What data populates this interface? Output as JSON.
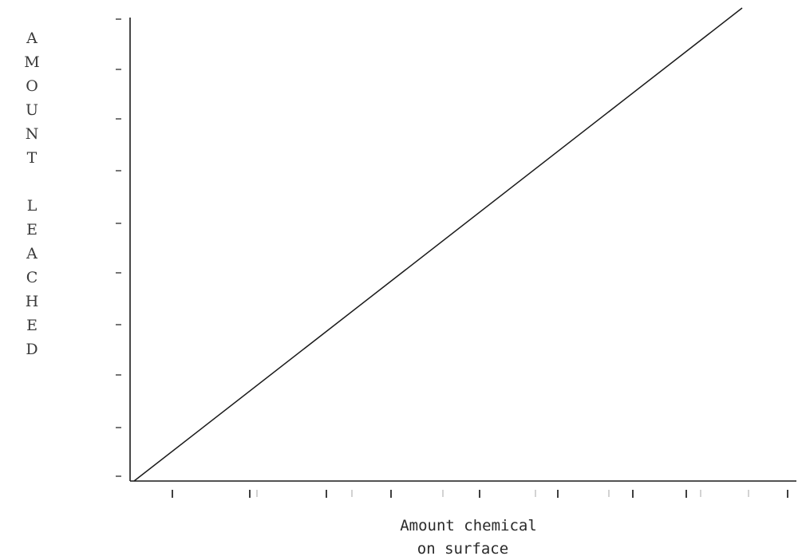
{
  "chart_data": {
    "type": "line",
    "title": "",
    "xlabel": [
      "Amount chemical",
      "on surface"
    ],
    "ylabel": "AMOUNT LEACHED",
    "xlim": [
      0,
      1
    ],
    "ylim": [
      0,
      1
    ],
    "grid": false,
    "legend": "none",
    "series": [
      {
        "x": [
          0,
          1
        ],
        "y": [
          0,
          1
        ]
      }
    ],
    "y_ticks": [
      0,
      0.1,
      0.2,
      0.3,
      0.4,
      0.5,
      0.6,
      0.7,
      0.8,
      0.9,
      1.0
    ],
    "x_ticks": [
      0.06,
      0.19,
      0.315,
      0.42,
      0.57,
      0.71,
      0.835,
      0.935,
      1.0
    ],
    "x_ticks_faint": [
      0.2,
      0.36,
      0.53,
      0.675,
      0.79,
      0.865,
      0.95
    ]
  }
}
